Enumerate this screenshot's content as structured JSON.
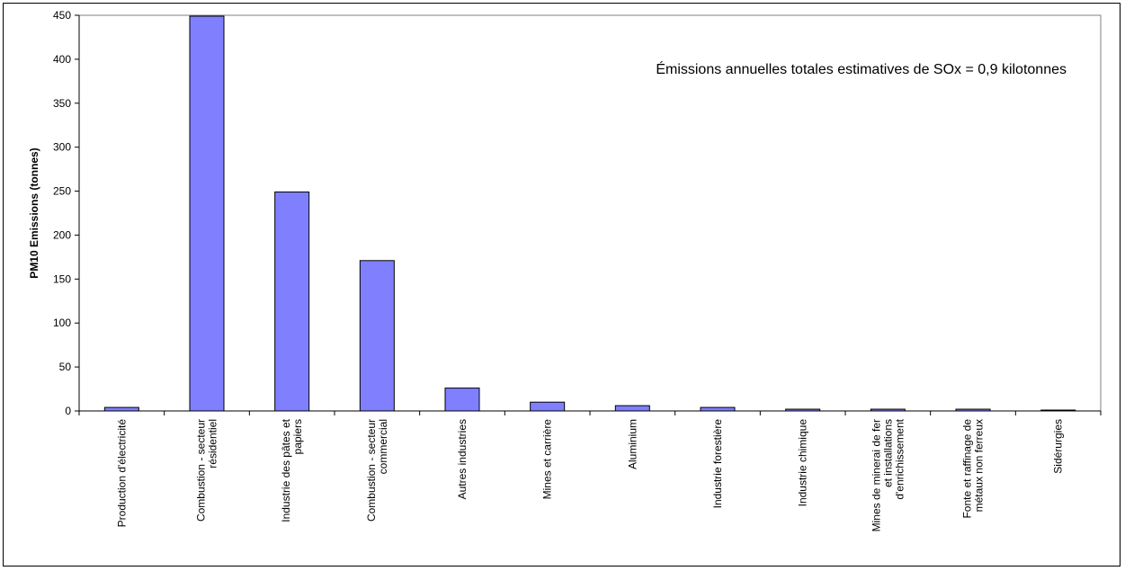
{
  "chart_data": {
    "type": "bar",
    "title": "",
    "xlabel": "",
    "ylabel": "PM10 Emissions (tonnes)",
    "ylim": [
      0,
      450
    ],
    "yticks": [
      0,
      50,
      100,
      150,
      200,
      250,
      300,
      350,
      400,
      450
    ],
    "grid": false,
    "legend": "none",
    "bar_color": "#8080ff",
    "annotation": "Émissions annuelles totales estimatives de SOx = 0,9 kilotonnes",
    "categories": [
      [
        "Production d'électricité"
      ],
      [
        "Combustion - secteur",
        "résidentiel"
      ],
      [
        "Industrie des pâtes et",
        "papiers"
      ],
      [
        "Combustion - secteur",
        "commercial"
      ],
      [
        "Autres industries"
      ],
      [
        "Mines et carrière"
      ],
      [
        "Aluminium"
      ],
      [
        "Industrie forestière"
      ],
      [
        "Industrie chimique"
      ],
      [
        "Mines de minerai de fer",
        "et installations",
        "d'enrichissement"
      ],
      [
        "Fonte et raffinage de",
        "métaux non ferreux"
      ],
      [
        "Sidérurgies"
      ]
    ],
    "values": [
      4,
      449,
      249,
      171,
      26,
      10,
      6,
      4,
      2,
      2,
      2,
      1
    ]
  }
}
